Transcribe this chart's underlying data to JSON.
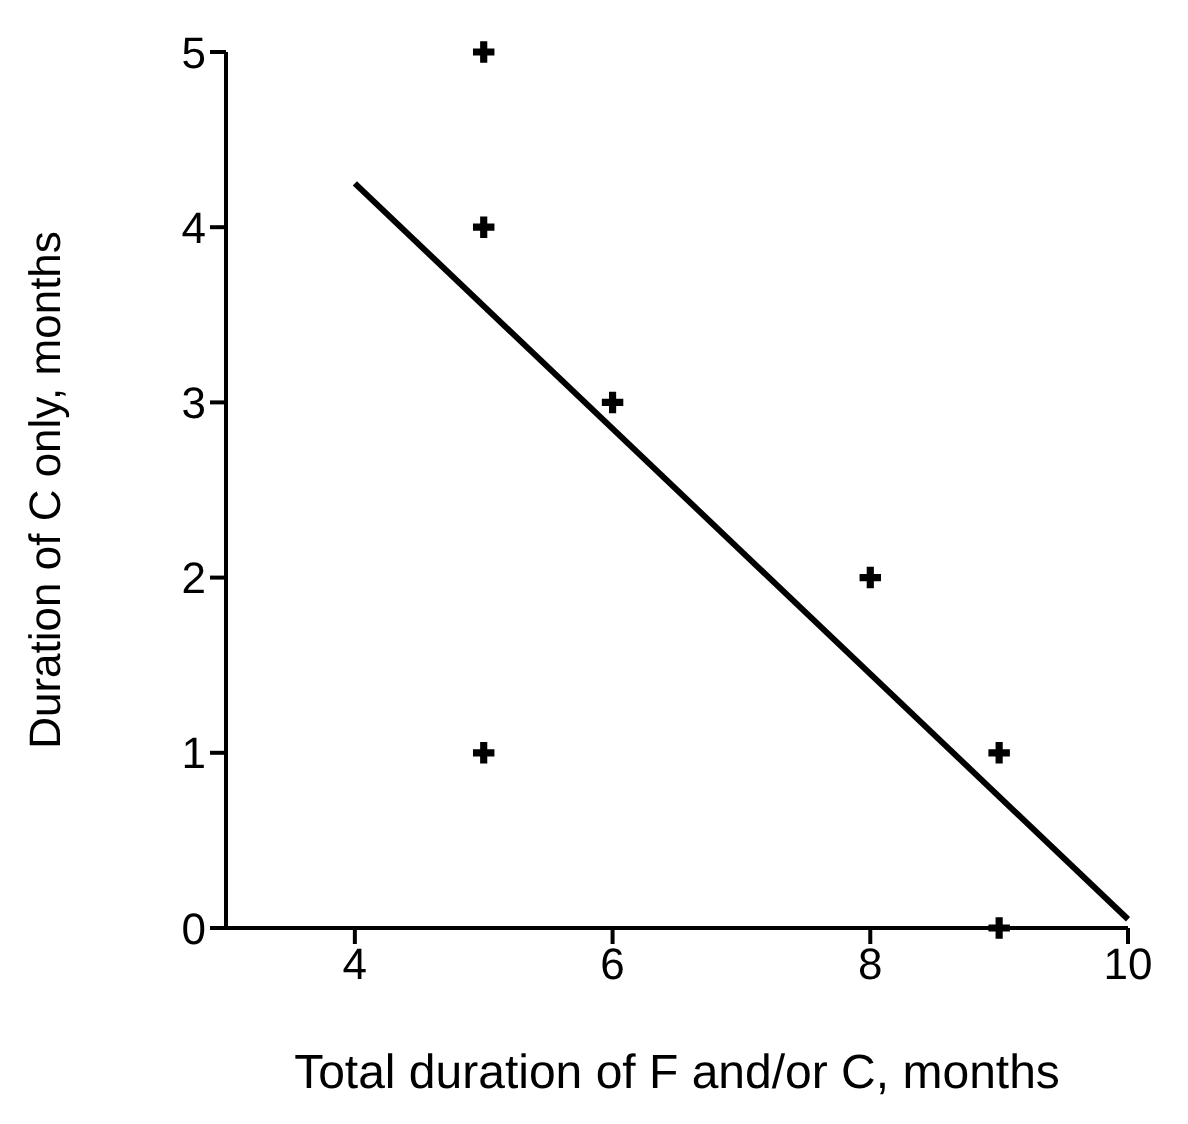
{
  "chart_data": {
    "type": "scatter",
    "xlabel": "Total duration of F and/or C, months",
    "ylabel": "Duration of C only, months",
    "marker": "cross",
    "grid": false,
    "legend": false,
    "xlim": [
      3,
      10
    ],
    "xticks": [
      4,
      6,
      8,
      10
    ],
    "ylim": [
      0,
      5
    ],
    "yticks": [
      0,
      1,
      2,
      3,
      4,
      5
    ],
    "series": [
      {
        "color": "#000000",
        "x": [
          5,
          5,
          5,
          6,
          8,
          9,
          9
        ],
        "values": [
          5,
          4,
          1,
          3,
          2,
          1,
          0
        ]
      },
      {
        "type": "line",
        "marker": "none",
        "color": "#000000",
        "x": [
          4,
          10
        ],
        "values": [
          4.25,
          0.05
        ]
      }
    ]
  }
}
